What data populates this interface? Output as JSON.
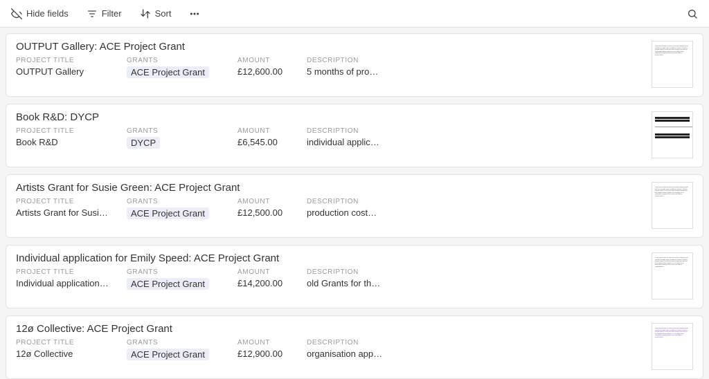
{
  "toolbar": {
    "hideFields": "Hide fields",
    "filter": "Filter",
    "sort": "Sort"
  },
  "labels": {
    "projectTitle": "PROJECT TITLE",
    "grants": "GRANTS",
    "amount": "AMOUNT",
    "description": "DESCRIPTION"
  },
  "colors": {
    "tagBg": "#ecedf7",
    "cardBorder": "#e3e3e3",
    "labelText": "#9a9a9a"
  },
  "records": [
    {
      "title": "OUTPUT Gallery: ACE Project Grant",
      "projectTitle": "OUTPUT Gallery",
      "grant": "ACE Project Grant",
      "amount": "£12,600.00",
      "description": "5 months of pro…",
      "thumbStyle": "text"
    },
    {
      "title": "Book R&D: DYCP",
      "projectTitle": "Book R&D",
      "grant": "DYCP",
      "amount": "£6,545.00",
      "description": "individual applic…",
      "thumbStyle": "bars"
    },
    {
      "title": "Artists Grant for Susie Green: ACE Project Grant",
      "projectTitle": "Artists Grant for Susi…",
      "grant": "ACE Project Grant",
      "amount": "£12,500.00",
      "description": "production cost…",
      "thumbStyle": "text"
    },
    {
      "title": "Individual application for Emily Speed: ACE Project Grant",
      "projectTitle": "Individual application…",
      "grant": "ACE Project Grant",
      "amount": "£14,200.00",
      "description": "old Grants for th…",
      "thumbStyle": "text"
    },
    {
      "title": "12ø Collective: ACE Project Grant",
      "projectTitle": "12ø Collective",
      "grant": "ACE Project Grant",
      "amount": "£12,900.00",
      "description": "organisation app…",
      "thumbStyle": "purple"
    }
  ]
}
